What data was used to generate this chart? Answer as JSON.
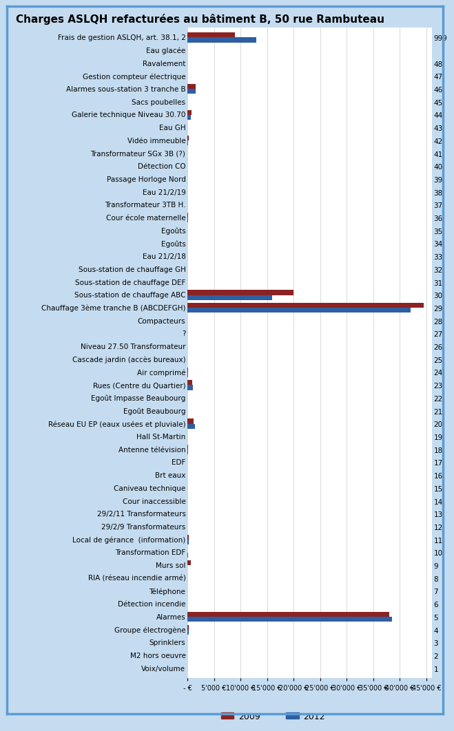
{
  "title": "Charges ASLQH refacturées au bâtiment B, 50 rue Rambuteau",
  "categories": [
    [
      "Frais de gestion ASLQH, art. 38.1, 2",
      "999"
    ],
    [
      "Eau glacée",
      ""
    ],
    [
      "Ravalement",
      "48"
    ],
    [
      "Gestion compteur électrique",
      "47"
    ],
    [
      "Alarmes sous-station 3 tranche B",
      "46"
    ],
    [
      "Sacs poubelles",
      "45"
    ],
    [
      "Galerie technique Niveau 30.70",
      "44"
    ],
    [
      "Eau GH",
      "43"
    ],
    [
      "Vidéo immeuble",
      "42"
    ],
    [
      "Transformateur SGx 3B (?)",
      "41"
    ],
    [
      "Détection CO",
      "40"
    ],
    [
      "Passage Horloge Nord",
      "39"
    ],
    [
      "Eau 21/2/19",
      "38"
    ],
    [
      "Transformateur 3TB H.",
      "37"
    ],
    [
      "Cour école maternelle",
      "36"
    ],
    [
      "Egoûts",
      "35"
    ],
    [
      "Egoûts",
      "34"
    ],
    [
      "Eau 21/2/18",
      "33"
    ],
    [
      "Sous-station de chauffage GH",
      "32"
    ],
    [
      "Sous-station de chauffage DEF",
      "31"
    ],
    [
      "Sous-station de chauffage ABC",
      "30"
    ],
    [
      "Chauffage 3ème tranche B (ABCDEFGH)",
      "29"
    ],
    [
      "Compacteurs",
      "28"
    ],
    [
      "?",
      "27"
    ],
    [
      "Niveau 27.50 Transformateur",
      "26"
    ],
    [
      "Cascade jardin (accès bureaux)",
      "25"
    ],
    [
      "Air comprimé",
      "24"
    ],
    [
      "Rues (Centre du Quartier)",
      "23"
    ],
    [
      "Egoût Impasse Beaubourg",
      "22"
    ],
    [
      "Egoût Beaubourg",
      "21"
    ],
    [
      "Réseau EU EP (eaux usées et pluviale)",
      "20"
    ],
    [
      "Hall St-Martin",
      "19"
    ],
    [
      "Antenne télévision",
      "18"
    ],
    [
      "EDF",
      "17"
    ],
    [
      "Brt eaux",
      "16"
    ],
    [
      "Caniveau technique",
      "15"
    ],
    [
      "Cour inaccessible",
      "14"
    ],
    [
      "29/2/11 Transformateurs",
      "13"
    ],
    [
      "29/2/9 Transformateurs",
      "12"
    ],
    [
      "Local de gérance  (information)",
      "11"
    ],
    [
      "Transformation EDF",
      "10"
    ],
    [
      "Murs sol",
      "9"
    ],
    [
      "RIA (réseau incendie armé)",
      "8"
    ],
    [
      "Téléphone",
      "7"
    ],
    [
      "Détection incendie",
      "6"
    ],
    [
      "Alarmes",
      "5"
    ],
    [
      "Groupe électrogène",
      "4"
    ],
    [
      "Sprinklers",
      "3"
    ],
    [
      "M2 hors oeuvre",
      "2"
    ],
    [
      "Voix/volume",
      "1"
    ]
  ],
  "values_2009": [
    9000,
    0,
    0,
    0,
    1500,
    0,
    800,
    0,
    200,
    0,
    0,
    0,
    0,
    0,
    100,
    0,
    0,
    0,
    0,
    0,
    20000,
    44500,
    0,
    0,
    0,
    0,
    100,
    950,
    0,
    0,
    1200,
    0,
    150,
    0,
    0,
    0,
    0,
    0,
    0,
    200,
    0,
    600,
    0,
    0,
    0,
    38000,
    250,
    0,
    0,
    0
  ],
  "values_2012": [
    13000,
    0,
    0,
    0,
    1600,
    0,
    700,
    0,
    100,
    0,
    0,
    0,
    0,
    0,
    100,
    0,
    0,
    0,
    0,
    0,
    16000,
    42000,
    0,
    0,
    0,
    0,
    100,
    1100,
    0,
    0,
    1400,
    0,
    100,
    0,
    0,
    0,
    0,
    0,
    0,
    200,
    150,
    0,
    0,
    0,
    0,
    38500,
    200,
    0,
    0,
    0
  ],
  "color_2009": "#8B2323",
  "color_2012": "#2E5FA3",
  "xtick_values": [
    0,
    5000,
    10000,
    15000,
    20000,
    25000,
    30000,
    35000,
    40000,
    45000
  ],
  "xtick_labels": [
    "- €",
    "5'000 €",
    "10'000 €",
    "15'000 €",
    "20'000 €",
    "25'000 €",
    "30'000 €",
    "35'000 €",
    "40'000 €",
    "45'000 €"
  ],
  "xlim": [
    0,
    46000
  ],
  "background_color": "#C5DCF0",
  "inner_background": "#FFFFFF",
  "border_color": "#5B9BD5",
  "title_fontsize": 11,
  "label_fontsize": 7.5,
  "num_fontsize": 7.5,
  "xtick_fontsize": 7,
  "legend_fontsize": 9,
  "bar_height": 0.38
}
